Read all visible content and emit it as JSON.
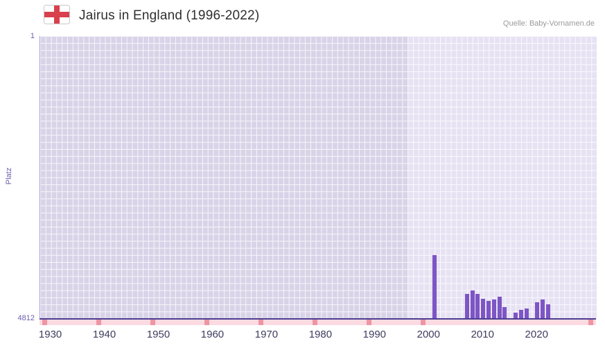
{
  "header": {
    "title": "Jairus in England (1996-2022)",
    "source": "Quelle: Baby-Vornamen.de"
  },
  "chart_data": {
    "type": "bar",
    "title": "Jairus in England (1996-2022)",
    "xlabel": "",
    "ylabel": "Platz",
    "y_axis": {
      "top_label": "1",
      "bottom_label": "4812",
      "min": 1,
      "max": 4812,
      "inverted": true
    },
    "xlim": [
      1928,
      2031
    ],
    "x_ticks": [
      1930,
      1940,
      1950,
      1960,
      1970,
      1980,
      1990,
      2000,
      2010,
      2020
    ],
    "highlight_from_year": 1996,
    "grid": true,
    "legend": "none",
    "bars": [
      {
        "year": 2001,
        "rank": 3730
      },
      {
        "year": 2007,
        "rank": 4390
      },
      {
        "year": 2008,
        "rank": 4330
      },
      {
        "year": 2009,
        "rank": 4390
      },
      {
        "year": 2010,
        "rank": 4470
      },
      {
        "year": 2011,
        "rank": 4500
      },
      {
        "year": 2012,
        "rank": 4480
      },
      {
        "year": 2013,
        "rank": 4430
      },
      {
        "year": 2014,
        "rank": 4610
      },
      {
        "year": 2016,
        "rank": 4700
      },
      {
        "year": 2017,
        "rank": 4660
      },
      {
        "year": 2018,
        "rank": 4640
      },
      {
        "year": 2020,
        "rank": 4530
      },
      {
        "year": 2021,
        "rank": 4480
      },
      {
        "year": 2022,
        "rank": 4560
      }
    ],
    "no_data_mark_years": [
      1929,
      1939,
      1949,
      1959,
      1969,
      1979,
      1989,
      1999,
      2030
    ],
    "colors": {
      "bar": "#7d55c4",
      "plot_bg": "#d9d3e8",
      "highlight_bg": "#e7e2f3",
      "grid": "#ffffff",
      "axis": "#4b3e92",
      "strip": "#fbdbe1",
      "strip_mark": "#ee95a3",
      "tick_label": "#3e3c5e",
      "axis_label": "#6c5fae",
      "flag_cross": "#d9404d",
      "flag_field": "#ffffff",
      "flag_border": "#c9c9c9"
    }
  }
}
